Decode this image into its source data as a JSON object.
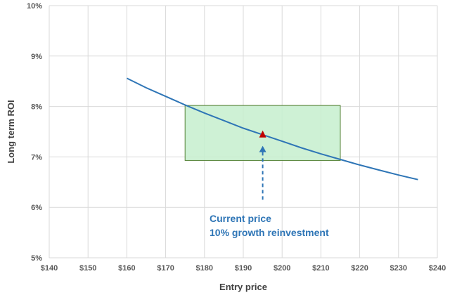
{
  "chart_data": {
    "type": "line",
    "title": "",
    "xlabel": "Entry price",
    "ylabel": "Long term ROI",
    "xlim": [
      140,
      240
    ],
    "ylim": [
      5,
      10
    ],
    "x_ticks": [
      140,
      150,
      160,
      170,
      180,
      190,
      200,
      210,
      220,
      230,
      240
    ],
    "x_tick_labels": [
      "$140",
      "$150",
      "$160",
      "$170",
      "$180",
      "$190",
      "$200",
      "$210",
      "$220",
      "$230",
      "$240"
    ],
    "y_ticks": [
      5,
      6,
      7,
      8,
      9,
      10
    ],
    "y_tick_labels": [
      "5%",
      "6%",
      "7%",
      "8%",
      "9%",
      "10%"
    ],
    "grid": true,
    "series": [
      {
        "x": [
          160,
          165,
          170,
          175,
          180,
          185,
          190,
          195,
          200,
          205,
          210,
          215,
          220,
          225,
          230,
          235
        ],
        "values": [
          8.56,
          8.37,
          8.2,
          8.03,
          7.87,
          7.72,
          7.57,
          7.44,
          7.31,
          7.18,
          7.06,
          6.95,
          6.84,
          6.74,
          6.64,
          6.55
        ],
        "color": "#2e75b6"
      }
    ],
    "highlight_box": {
      "x_range": [
        175,
        215
      ],
      "y_range": [
        6.93,
        8.02
      ],
      "fill": "#c6efce",
      "stroke": "#548235"
    },
    "marker": {
      "x": 195,
      "y": 7.44,
      "color": "#c00000",
      "shape": "triangle"
    },
    "annotation": {
      "lines": [
        "Current price",
        "10% growth reinvestment"
      ],
      "color": "#2e75b6",
      "arrow_from": {
        "x": 195,
        "y": 6.15
      },
      "arrow_to": {
        "x": 195,
        "y": 7.22
      }
    },
    "colors": {
      "grid": "#d9d9d9",
      "axis": "#d9d9d9",
      "text": "#595959"
    }
  }
}
